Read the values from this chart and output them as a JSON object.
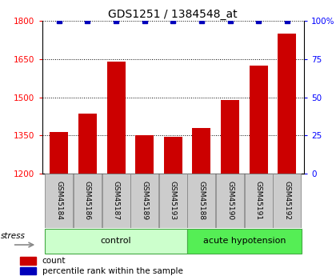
{
  "title": "GDS1251 / 1384548_at",
  "samples": [
    "GSM45184",
    "GSM45186",
    "GSM45187",
    "GSM45189",
    "GSM45193",
    "GSM45188",
    "GSM45190",
    "GSM45191",
    "GSM45192"
  ],
  "counts": [
    1365,
    1435,
    1640,
    1350,
    1345,
    1380,
    1490,
    1625,
    1750
  ],
  "percentiles": [
    100,
    100,
    100,
    100,
    100,
    100,
    100,
    100,
    100
  ],
  "bar_color": "#CC0000",
  "dot_color": "#0000BB",
  "ylim_left": [
    1200,
    1800
  ],
  "ylim_right": [
    0,
    100
  ],
  "yticks_left": [
    1200,
    1350,
    1500,
    1650,
    1800
  ],
  "yticks_right": [
    0,
    25,
    50,
    75,
    100
  ],
  "ylabel_right_labels": [
    "0",
    "25",
    "50",
    "75",
    "100%"
  ],
  "ctrl_color": "#CCFFCC",
  "ah_color": "#55EE55",
  "sample_box_color": "#CCCCCC",
  "legend_count_color": "#CC0000",
  "legend_pct_color": "#0000BB",
  "stress_label": "stress",
  "group_label_control": "control",
  "group_label_acute": "acute hypotension",
  "n_control": 5,
  "n_ah": 4
}
